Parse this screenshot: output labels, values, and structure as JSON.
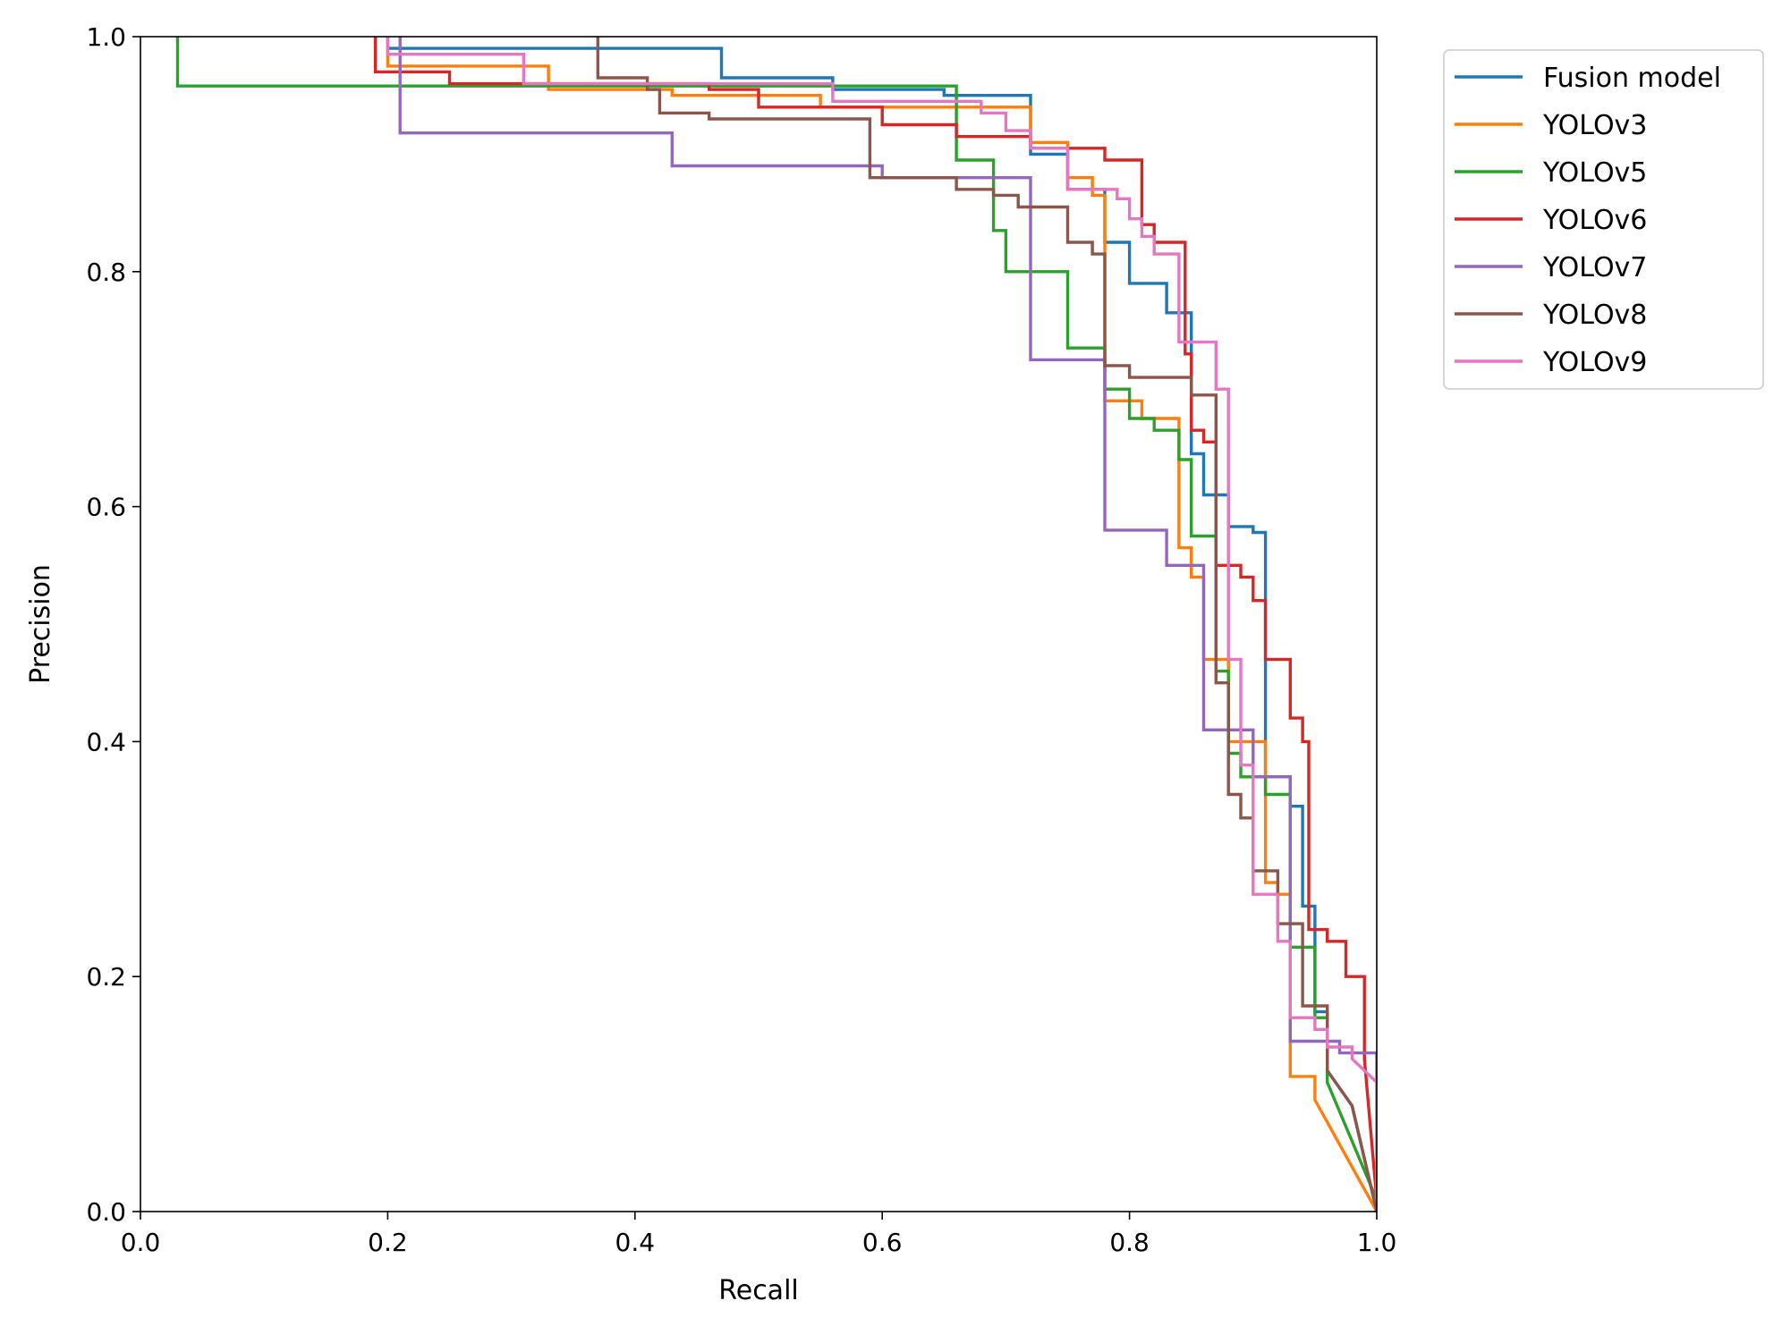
{
  "chart_data": {
    "type": "line",
    "title": "",
    "xlabel": "Recall",
    "ylabel": "Precision",
    "xlim": [
      0.0,
      1.0
    ],
    "ylim": [
      0.0,
      1.0
    ],
    "xticks": [
      "0.0",
      "0.2",
      "0.4",
      "0.6",
      "0.8",
      "1.0"
    ],
    "yticks": [
      "0.0",
      "0.2",
      "0.4",
      "0.6",
      "0.8",
      "1.0"
    ],
    "grid": false,
    "legend_position": "outside-top-right",
    "series": [
      {
        "name": "Fusion model",
        "color": "#1f77b4",
        "points": [
          [
            0.2,
            1.0
          ],
          [
            0.2,
            0.99
          ],
          [
            0.47,
            0.99
          ],
          [
            0.47,
            0.965
          ],
          [
            0.56,
            0.965
          ],
          [
            0.56,
            0.955
          ],
          [
            0.65,
            0.955
          ],
          [
            0.65,
            0.95
          ],
          [
            0.72,
            0.95
          ],
          [
            0.72,
            0.9
          ],
          [
            0.75,
            0.9
          ],
          [
            0.75,
            0.87
          ],
          [
            0.78,
            0.87
          ],
          [
            0.78,
            0.825
          ],
          [
            0.8,
            0.825
          ],
          [
            0.8,
            0.79
          ],
          [
            0.83,
            0.79
          ],
          [
            0.83,
            0.765
          ],
          [
            0.85,
            0.765
          ],
          [
            0.85,
            0.645
          ],
          [
            0.86,
            0.645
          ],
          [
            0.86,
            0.61
          ],
          [
            0.88,
            0.61
          ],
          [
            0.88,
            0.583
          ],
          [
            0.9,
            0.583
          ],
          [
            0.9,
            0.578
          ],
          [
            0.91,
            0.578
          ],
          [
            0.91,
            0.5
          ],
          [
            0.91,
            0.37
          ],
          [
            0.93,
            0.37
          ],
          [
            0.93,
            0.345
          ],
          [
            0.94,
            0.345
          ],
          [
            0.94,
            0.26
          ],
          [
            0.95,
            0.26
          ],
          [
            0.95,
            0.17
          ],
          [
            0.96,
            0.17
          ],
          [
            0.96,
            0.12
          ],
          [
            0.98,
            0.09
          ],
          [
            1.0,
            0.0
          ]
        ]
      },
      {
        "name": "YOLOv3",
        "color": "#ff7f0e",
        "points": [
          [
            0.2,
            1.0
          ],
          [
            0.2,
            0.975
          ],
          [
            0.33,
            0.975
          ],
          [
            0.33,
            0.955
          ],
          [
            0.43,
            0.955
          ],
          [
            0.43,
            0.95
          ],
          [
            0.55,
            0.95
          ],
          [
            0.55,
            0.94
          ],
          [
            0.72,
            0.94
          ],
          [
            0.72,
            0.91
          ],
          [
            0.75,
            0.91
          ],
          [
            0.75,
            0.88
          ],
          [
            0.77,
            0.88
          ],
          [
            0.77,
            0.865
          ],
          [
            0.78,
            0.865
          ],
          [
            0.78,
            0.69
          ],
          [
            0.81,
            0.69
          ],
          [
            0.81,
            0.675
          ],
          [
            0.84,
            0.675
          ],
          [
            0.84,
            0.565
          ],
          [
            0.85,
            0.565
          ],
          [
            0.85,
            0.54
          ],
          [
            0.86,
            0.54
          ],
          [
            0.86,
            0.47
          ],
          [
            0.88,
            0.47
          ],
          [
            0.88,
            0.4
          ],
          [
            0.91,
            0.4
          ],
          [
            0.91,
            0.28
          ],
          [
            0.92,
            0.28
          ],
          [
            0.92,
            0.27
          ],
          [
            0.93,
            0.27
          ],
          [
            0.93,
            0.115
          ],
          [
            0.95,
            0.115
          ],
          [
            0.95,
            0.095
          ],
          [
            1.0,
            0.0
          ]
        ]
      },
      {
        "name": "YOLOv5",
        "color": "#2ca02c",
        "points": [
          [
            0.03,
            1.0
          ],
          [
            0.03,
            0.958
          ],
          [
            0.56,
            0.958
          ],
          [
            0.66,
            0.958
          ],
          [
            0.66,
            0.895
          ],
          [
            0.69,
            0.895
          ],
          [
            0.69,
            0.835
          ],
          [
            0.7,
            0.835
          ],
          [
            0.7,
            0.8
          ],
          [
            0.75,
            0.8
          ],
          [
            0.75,
            0.735
          ],
          [
            0.78,
            0.735
          ],
          [
            0.78,
            0.7
          ],
          [
            0.8,
            0.7
          ],
          [
            0.8,
            0.675
          ],
          [
            0.82,
            0.675
          ],
          [
            0.82,
            0.665
          ],
          [
            0.84,
            0.665
          ],
          [
            0.84,
            0.64
          ],
          [
            0.85,
            0.64
          ],
          [
            0.85,
            0.575
          ],
          [
            0.87,
            0.575
          ],
          [
            0.87,
            0.46
          ],
          [
            0.88,
            0.46
          ],
          [
            0.88,
            0.39
          ],
          [
            0.89,
            0.39
          ],
          [
            0.89,
            0.37
          ],
          [
            0.91,
            0.37
          ],
          [
            0.91,
            0.355
          ],
          [
            0.93,
            0.355
          ],
          [
            0.93,
            0.225
          ],
          [
            0.95,
            0.225
          ],
          [
            0.95,
            0.165
          ],
          [
            0.96,
            0.165
          ],
          [
            0.96,
            0.11
          ],
          [
            1.0,
            0.01
          ]
        ]
      },
      {
        "name": "YOLOv6",
        "color": "#d62728",
        "points": [
          [
            0.19,
            1.0
          ],
          [
            0.19,
            0.97
          ],
          [
            0.25,
            0.97
          ],
          [
            0.25,
            0.96
          ],
          [
            0.46,
            0.96
          ],
          [
            0.46,
            0.955
          ],
          [
            0.5,
            0.955
          ],
          [
            0.5,
            0.94
          ],
          [
            0.6,
            0.94
          ],
          [
            0.6,
            0.925
          ],
          [
            0.66,
            0.925
          ],
          [
            0.66,
            0.915
          ],
          [
            0.72,
            0.915
          ],
          [
            0.72,
            0.905
          ],
          [
            0.78,
            0.905
          ],
          [
            0.78,
            0.895
          ],
          [
            0.81,
            0.895
          ],
          [
            0.81,
            0.84
          ],
          [
            0.82,
            0.84
          ],
          [
            0.82,
            0.825
          ],
          [
            0.845,
            0.825
          ],
          [
            0.845,
            0.73
          ],
          [
            0.85,
            0.73
          ],
          [
            0.85,
            0.665
          ],
          [
            0.86,
            0.665
          ],
          [
            0.86,
            0.655
          ],
          [
            0.87,
            0.655
          ],
          [
            0.87,
            0.55
          ],
          [
            0.89,
            0.55
          ],
          [
            0.89,
            0.54
          ],
          [
            0.9,
            0.54
          ],
          [
            0.9,
            0.52
          ],
          [
            0.91,
            0.52
          ],
          [
            0.91,
            0.47
          ],
          [
            0.93,
            0.47
          ],
          [
            0.93,
            0.42
          ],
          [
            0.94,
            0.42
          ],
          [
            0.94,
            0.4
          ],
          [
            0.945,
            0.4
          ],
          [
            0.945,
            0.24
          ],
          [
            0.96,
            0.24
          ],
          [
            0.96,
            0.23
          ],
          [
            0.975,
            0.23
          ],
          [
            0.975,
            0.2
          ],
          [
            0.99,
            0.2
          ],
          [
            0.99,
            0.13
          ],
          [
            1.0,
            0.01
          ]
        ]
      },
      {
        "name": "YOLOv7",
        "color": "#9467bd",
        "points": [
          [
            0.21,
            1.0
          ],
          [
            0.21,
            0.918
          ],
          [
            0.43,
            0.918
          ],
          [
            0.43,
            0.89
          ],
          [
            0.6,
            0.89
          ],
          [
            0.6,
            0.88
          ],
          [
            0.72,
            0.88
          ],
          [
            0.72,
            0.725
          ],
          [
            0.78,
            0.725
          ],
          [
            0.78,
            0.58
          ],
          [
            0.83,
            0.58
          ],
          [
            0.83,
            0.55
          ],
          [
            0.86,
            0.55
          ],
          [
            0.86,
            0.41
          ],
          [
            0.9,
            0.41
          ],
          [
            0.9,
            0.37
          ],
          [
            0.93,
            0.37
          ],
          [
            0.93,
            0.145
          ],
          [
            0.97,
            0.145
          ],
          [
            0.97,
            0.135
          ],
          [
            1.0,
            0.135
          ],
          [
            1.0,
            0.01
          ]
        ]
      },
      {
        "name": "YOLOv8",
        "color": "#8c564b",
        "points": [
          [
            0.37,
            1.0
          ],
          [
            0.37,
            0.965
          ],
          [
            0.41,
            0.965
          ],
          [
            0.41,
            0.955
          ],
          [
            0.42,
            0.955
          ],
          [
            0.42,
            0.935
          ],
          [
            0.46,
            0.935
          ],
          [
            0.46,
            0.93
          ],
          [
            0.59,
            0.93
          ],
          [
            0.59,
            0.88
          ],
          [
            0.66,
            0.88
          ],
          [
            0.66,
            0.87
          ],
          [
            0.69,
            0.87
          ],
          [
            0.69,
            0.865
          ],
          [
            0.71,
            0.865
          ],
          [
            0.71,
            0.855
          ],
          [
            0.75,
            0.855
          ],
          [
            0.75,
            0.825
          ],
          [
            0.77,
            0.825
          ],
          [
            0.77,
            0.815
          ],
          [
            0.78,
            0.815
          ],
          [
            0.78,
            0.72
          ],
          [
            0.8,
            0.72
          ],
          [
            0.8,
            0.71
          ],
          [
            0.85,
            0.71
          ],
          [
            0.85,
            0.695
          ],
          [
            0.87,
            0.695
          ],
          [
            0.87,
            0.45
          ],
          [
            0.88,
            0.45
          ],
          [
            0.88,
            0.355
          ],
          [
            0.89,
            0.355
          ],
          [
            0.89,
            0.335
          ],
          [
            0.9,
            0.335
          ],
          [
            0.9,
            0.29
          ],
          [
            0.92,
            0.29
          ],
          [
            0.92,
            0.245
          ],
          [
            0.94,
            0.245
          ],
          [
            0.94,
            0.175
          ],
          [
            0.96,
            0.175
          ],
          [
            0.96,
            0.12
          ],
          [
            0.98,
            0.09
          ],
          [
            1.0,
            0.0
          ]
        ]
      },
      {
        "name": "YOLOv9",
        "color": "#e377c2",
        "points": [
          [
            0.2,
            1.0
          ],
          [
            0.2,
            0.985
          ],
          [
            0.31,
            0.985
          ],
          [
            0.31,
            0.96
          ],
          [
            0.56,
            0.96
          ],
          [
            0.56,
            0.945
          ],
          [
            0.68,
            0.945
          ],
          [
            0.68,
            0.935
          ],
          [
            0.7,
            0.935
          ],
          [
            0.7,
            0.92
          ],
          [
            0.72,
            0.92
          ],
          [
            0.72,
            0.905
          ],
          [
            0.75,
            0.905
          ],
          [
            0.75,
            0.87
          ],
          [
            0.79,
            0.87
          ],
          [
            0.79,
            0.862
          ],
          [
            0.8,
            0.862
          ],
          [
            0.8,
            0.845
          ],
          [
            0.81,
            0.845
          ],
          [
            0.81,
            0.83
          ],
          [
            0.82,
            0.83
          ],
          [
            0.82,
            0.815
          ],
          [
            0.84,
            0.815
          ],
          [
            0.84,
            0.74
          ],
          [
            0.87,
            0.74
          ],
          [
            0.87,
            0.7
          ],
          [
            0.88,
            0.7
          ],
          [
            0.88,
            0.47
          ],
          [
            0.89,
            0.47
          ],
          [
            0.89,
            0.38
          ],
          [
            0.9,
            0.38
          ],
          [
            0.9,
            0.27
          ],
          [
            0.92,
            0.27
          ],
          [
            0.92,
            0.23
          ],
          [
            0.93,
            0.23
          ],
          [
            0.93,
            0.165
          ],
          [
            0.95,
            0.165
          ],
          [
            0.95,
            0.155
          ],
          [
            0.96,
            0.155
          ],
          [
            0.96,
            0.14
          ],
          [
            0.98,
            0.14
          ],
          [
            0.98,
            0.13
          ],
          [
            1.0,
            0.11
          ],
          [
            1.0,
            0.01
          ]
        ]
      }
    ]
  }
}
